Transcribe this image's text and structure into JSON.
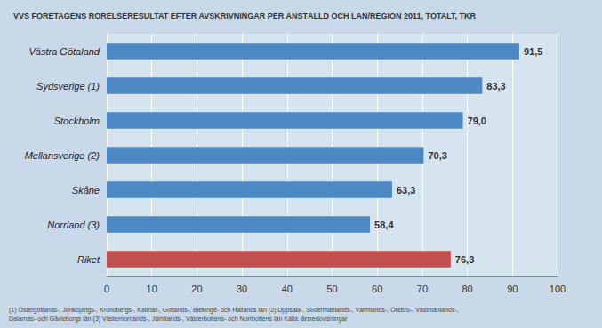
{
  "chart_data": {
    "type": "bar",
    "orientation": "horizontal",
    "title": "VVS FÖRETAGENS RÖRELSERESULTAT EFTER AVSKRIVNINGAR PER ANSTÄLLD OCH LÄN/REGION 2011, TOTALT, TKR",
    "categories": [
      "Riket",
      "Norrland (3)",
      "Skåne",
      "Mellansverige (2)",
      "Stockholm",
      "Sydsverige (1)",
      "Västra Götaland"
    ],
    "values": [
      76.3,
      58.4,
      63.3,
      70.3,
      79.0,
      83.3,
      91.5
    ],
    "value_labels": [
      "76,3",
      "58,4",
      "63,3",
      "70,3",
      "79,0",
      "83,3",
      "91,5"
    ],
    "colors": [
      "#c0504d",
      "#4d89c4",
      "#4d89c4",
      "#4d89c4",
      "#4d89c4",
      "#4d89c4",
      "#4d89c4"
    ],
    "xlim": [
      0,
      100
    ],
    "xticks": [
      0,
      10,
      20,
      30,
      40,
      50,
      60,
      70,
      80,
      90,
      100
    ],
    "grid": true,
    "data_labels": true,
    "annotations": [
      "(1) Östergötlands-, Jönköpings-, Kronobergs-, Kalmar-, Gotlands-, Blekinge- och Hallands län (2) Uppsala-, Södermanlands-, Värmlands-, Örebro-, Västmanlands-,\nDalarnas- och Gävleborgs län (3) Västernorrlands-, Jämtlands-, Västerbottens- och Norrbottens län Källa: årsredovisningar"
    ]
  }
}
